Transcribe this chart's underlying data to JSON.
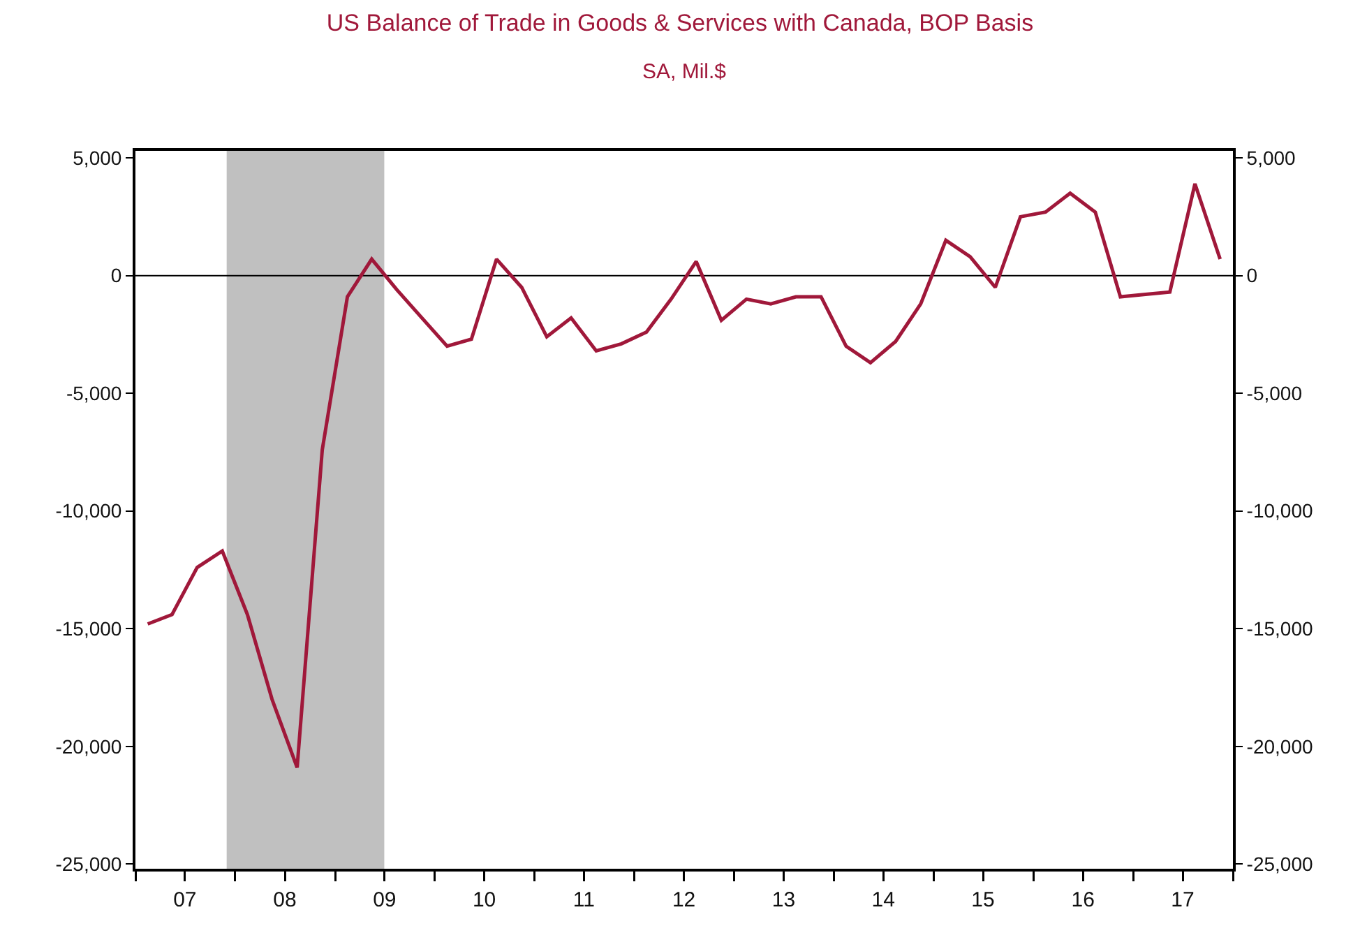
{
  "chart_data": {
    "type": "line",
    "title": "US Balance of Trade in Goods & Services with Canada, BOP Basis",
    "subtitle": "SA, Mil.$",
    "x": [
      "2007-02-15",
      "2007-05-15",
      "2007-08-15",
      "2007-11-15",
      "2008-02-15",
      "2008-05-15",
      "2008-08-15",
      "2008-11-15",
      "2009-02-15",
      "2009-05-15",
      "2009-08-15",
      "2009-11-15",
      "2010-02-15",
      "2010-05-15",
      "2010-08-15",
      "2010-11-15",
      "2011-02-15",
      "2011-05-15",
      "2011-08-15",
      "2011-11-15",
      "2012-02-15",
      "2012-05-15",
      "2012-08-15",
      "2012-11-15",
      "2013-02-15",
      "2013-05-15",
      "2013-08-15",
      "2013-11-15",
      "2014-02-15",
      "2014-05-15",
      "2014-08-15",
      "2014-11-15",
      "2015-02-15",
      "2015-05-15",
      "2015-08-15",
      "2015-11-15",
      "2016-02-15",
      "2016-05-15",
      "2016-08-15",
      "2016-11-15",
      "2017-02-15",
      "2017-05-15",
      "2017-08-15",
      "2017-11-15"
    ],
    "series": [
      {
        "color": "#a0183a",
        "values": [
          -14800,
          -14400,
          -12400,
          -11700,
          -14400,
          -18000,
          -20900,
          -7400,
          -900,
          700,
          -600,
          -1800,
          -3000,
          -2700,
          700,
          -500,
          -2600,
          -1800,
          -3200,
          -2900,
          -2400,
          -1000,
          600,
          -1900,
          -1000,
          -1200,
          -900,
          -900,
          -3000,
          -3700,
          -2800,
          -1200,
          1500,
          800,
          -500,
          2500,
          2700,
          3500,
          2700,
          -900,
          -800,
          -700,
          3900,
          700
        ]
      }
    ],
    "xlim": [
      "2007-01-01",
      "2018-01-01"
    ],
    "xticks": [
      {
        "value": "2007-01-01",
        "label": null
      },
      {
        "value": "2007-07-01",
        "label": "07"
      },
      {
        "value": "2008-01-01",
        "label": null
      },
      {
        "value": "2008-07-01",
        "label": "08"
      },
      {
        "value": "2009-01-01",
        "label": null
      },
      {
        "value": "2009-07-01",
        "label": "09"
      },
      {
        "value": "2010-01-01",
        "label": null
      },
      {
        "value": "2010-07-01",
        "label": "10"
      },
      {
        "value": "2011-01-01",
        "label": null
      },
      {
        "value": "2011-07-01",
        "label": "11"
      },
      {
        "value": "2012-01-01",
        "label": null
      },
      {
        "value": "2012-07-01",
        "label": "12"
      },
      {
        "value": "2013-01-01",
        "label": null
      },
      {
        "value": "2013-07-01",
        "label": "13"
      },
      {
        "value": "2014-01-01",
        "label": null
      },
      {
        "value": "2014-07-01",
        "label": "14"
      },
      {
        "value": "2015-01-01",
        "label": null
      },
      {
        "value": "2015-07-01",
        "label": "15"
      },
      {
        "value": "2016-01-01",
        "label": null
      },
      {
        "value": "2016-07-01",
        "label": "16"
      },
      {
        "value": "2017-01-01",
        "label": null
      },
      {
        "value": "2017-07-01",
        "label": "17"
      },
      {
        "value": "2018-01-01",
        "label": null
      }
    ],
    "ylim": [
      -25200,
      5300
    ],
    "yticks": [
      {
        "value": 5000,
        "label": "5,000"
      },
      0,
      {
        "value": -5000,
        "label": "-5,000"
      },
      {
        "value": -10000,
        "label": "-10,000"
      },
      {
        "value": -15000,
        "label": "-15,000"
      },
      {
        "value": -20000,
        "label": "-20,000"
      },
      {
        "value": -25000,
        "label": "-25,000"
      }
    ],
    "y2lim": [
      -25200,
      5300
    ],
    "y2ticks": [
      {
        "value": 5000,
        "label": "5,000"
      },
      0,
      {
        "value": -5000,
        "label": "-5,000"
      },
      {
        "value": -10000,
        "label": "-10,000"
      },
      {
        "value": -15000,
        "label": "-15,000"
      },
      {
        "value": -20000,
        "label": "-20,000"
      },
      {
        "value": -25000,
        "label": "-25,000"
      }
    ],
    "ref_lines": [
      {
        "axis": "y",
        "value": 0,
        "color": "#000000"
      }
    ],
    "bands": [
      {
        "axis": "x",
        "from": "2007-12-01",
        "to": "2009-06-30",
        "color": "#c0c0c0"
      }
    ],
    "grid": false,
    "line_style": "solid",
    "marker": "none"
  }
}
